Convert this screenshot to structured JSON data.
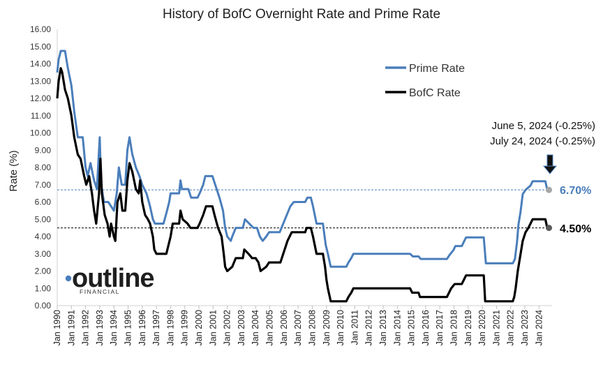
{
  "chart_data": {
    "type": "line",
    "title": "History of BofC Overnight Rate and Prime Rate",
    "xlabel": "",
    "ylabel": "Rate (%)",
    "ylim": [
      0,
      16
    ],
    "xlim": [
      1990.0,
      2024.92
    ],
    "y_ticks": [
      "0.00",
      "1.00",
      "2.00",
      "3.00",
      "4.00",
      "5.00",
      "6.00",
      "7.00",
      "8.00",
      "9.00",
      "10.00",
      "11.00",
      "12.00",
      "13.00",
      "14.00",
      "15.00",
      "16.00"
    ],
    "x_tick_labels": [
      "Jan 1990",
      "Jan 1991",
      "Jan 1992",
      "Jan 1993",
      "Jan 1994",
      "Jan 1995",
      "Jan 1996",
      "Jan 1997",
      "Jan 1998",
      "Jan 1999",
      "Jan 2000",
      "Jan 2001",
      "Jan 2002",
      "Jan 2003",
      "Jan 2004",
      "Jan 2005",
      "Jan 2006",
      "Jan 2007",
      "Jan 2008",
      "Jan 2009",
      "Jan 2010",
      "Jan 2011",
      "Jan 2012",
      "Jan 2013",
      "Jan 2014",
      "Jan 2015",
      "Jan 2016",
      "Jan 2017",
      "Jan 2018",
      "Jan 2019",
      "Jan 2020",
      "Jan 2021",
      "Jan 2022",
      "Jan 2023",
      "Jan 2024"
    ],
    "grid": false,
    "legend_position": "top-right",
    "series": [
      {
        "name": "Prime Rate",
        "color": "#4a7ebb",
        "points": [
          [
            1990.0,
            13.5
          ],
          [
            1990.1,
            14.25
          ],
          [
            1990.25,
            14.75
          ],
          [
            1990.55,
            14.75
          ],
          [
            1990.75,
            13.75
          ],
          [
            1991.0,
            12.75
          ],
          [
            1991.2,
            11.25
          ],
          [
            1991.45,
            9.75
          ],
          [
            1991.8,
            9.75
          ],
          [
            1992.0,
            8.0
          ],
          [
            1992.15,
            7.5
          ],
          [
            1992.35,
            8.25
          ],
          [
            1992.6,
            7.25
          ],
          [
            1992.8,
            6.75
          ],
          [
            1993.0,
            9.75
          ],
          [
            1993.1,
            7.0
          ],
          [
            1993.3,
            6.0
          ],
          [
            1993.6,
            6.0
          ],
          [
            1993.8,
            5.75
          ],
          [
            1994.0,
            5.5
          ],
          [
            1994.2,
            6.5
          ],
          [
            1994.35,
            8.0
          ],
          [
            1994.55,
            7.0
          ],
          [
            1994.8,
            7.0
          ],
          [
            1994.95,
            9.0
          ],
          [
            1995.1,
            9.75
          ],
          [
            1995.3,
            8.75
          ],
          [
            1995.55,
            8.0
          ],
          [
            1995.8,
            7.5
          ],
          [
            1996.0,
            7.0
          ],
          [
            1996.3,
            6.5
          ],
          [
            1996.55,
            5.75
          ],
          [
            1996.75,
            5.0
          ],
          [
            1996.9,
            4.75
          ],
          [
            1997.5,
            4.75
          ],
          [
            1997.75,
            5.5
          ],
          [
            1997.9,
            6.0
          ],
          [
            1998.0,
            6.5
          ],
          [
            1998.6,
            6.5
          ],
          [
            1998.7,
            7.25
          ],
          [
            1998.8,
            6.75
          ],
          [
            1999.25,
            6.75
          ],
          [
            1999.45,
            6.25
          ],
          [
            1999.9,
            6.25
          ],
          [
            2000.05,
            6.5
          ],
          [
            2000.3,
            7.0
          ],
          [
            2000.45,
            7.5
          ],
          [
            2000.95,
            7.5
          ],
          [
            2001.15,
            7.0
          ],
          [
            2001.45,
            6.25
          ],
          [
            2001.7,
            5.5
          ],
          [
            2001.85,
            4.5
          ],
          [
            2002.0,
            4.0
          ],
          [
            2002.25,
            3.75
          ],
          [
            2002.35,
            4.0
          ],
          [
            2002.6,
            4.5
          ],
          [
            2003.1,
            4.5
          ],
          [
            2003.25,
            5.0
          ],
          [
            2003.55,
            4.75
          ],
          [
            2003.85,
            4.5
          ],
          [
            2004.1,
            4.5
          ],
          [
            2004.3,
            4.0
          ],
          [
            2004.5,
            3.75
          ],
          [
            2004.75,
            4.0
          ],
          [
            2004.95,
            4.25
          ],
          [
            2005.7,
            4.25
          ],
          [
            2005.95,
            4.75
          ],
          [
            2006.2,
            5.25
          ],
          [
            2006.45,
            5.75
          ],
          [
            2006.7,
            6.0
          ],
          [
            2007.5,
            6.0
          ],
          [
            2007.65,
            6.25
          ],
          [
            2007.9,
            6.25
          ],
          [
            2008.05,
            5.75
          ],
          [
            2008.3,
            4.75
          ],
          [
            2008.75,
            4.75
          ],
          [
            2008.95,
            3.5
          ],
          [
            2009.1,
            3.0
          ],
          [
            2009.3,
            2.25
          ],
          [
            2010.4,
            2.25
          ],
          [
            2010.55,
            2.5
          ],
          [
            2010.75,
            2.75
          ],
          [
            2010.9,
            3.0
          ],
          [
            2014.9,
            3.0
          ],
          [
            2015.1,
            2.85
          ],
          [
            2015.5,
            2.85
          ],
          [
            2015.65,
            2.7
          ],
          [
            2017.5,
            2.7
          ],
          [
            2017.7,
            2.95
          ],
          [
            2017.95,
            3.2
          ],
          [
            2018.1,
            3.45
          ],
          [
            2018.55,
            3.45
          ],
          [
            2018.7,
            3.7
          ],
          [
            2018.85,
            3.95
          ],
          [
            2020.1,
            3.95
          ],
          [
            2020.25,
            2.45
          ],
          [
            2022.15,
            2.45
          ],
          [
            2022.3,
            2.7
          ],
          [
            2022.45,
            3.7
          ],
          [
            2022.55,
            4.7
          ],
          [
            2022.7,
            5.45
          ],
          [
            2022.85,
            6.45
          ],
          [
            2023.05,
            6.7
          ],
          [
            2023.4,
            6.95
          ],
          [
            2023.55,
            7.2
          ],
          [
            2024.45,
            7.2
          ],
          [
            2024.58,
            6.7
          ],
          [
            2024.7,
            6.7
          ]
        ]
      },
      {
        "name": "BofC Rate",
        "color": "#000000",
        "points": [
          [
            1990.0,
            12.0
          ],
          [
            1990.1,
            13.0
          ],
          [
            1990.25,
            13.75
          ],
          [
            1990.35,
            13.5
          ],
          [
            1990.55,
            12.5
          ],
          [
            1990.75,
            12.0
          ],
          [
            1991.0,
            11.0
          ],
          [
            1991.2,
            9.75
          ],
          [
            1991.45,
            8.75
          ],
          [
            1991.65,
            8.5
          ],
          [
            1991.9,
            7.5
          ],
          [
            1992.05,
            7.0
          ],
          [
            1992.25,
            7.5
          ],
          [
            1992.45,
            6.5
          ],
          [
            1992.6,
            5.5
          ],
          [
            1992.75,
            4.75
          ],
          [
            1992.95,
            6.5
          ],
          [
            1993.05,
            8.5
          ],
          [
            1993.15,
            6.5
          ],
          [
            1993.35,
            5.25
          ],
          [
            1993.55,
            4.75
          ],
          [
            1993.7,
            4.0
          ],
          [
            1993.8,
            4.75
          ],
          [
            1994.0,
            4.0
          ],
          [
            1994.1,
            3.75
          ],
          [
            1994.25,
            6.0
          ],
          [
            1994.45,
            6.5
          ],
          [
            1994.6,
            5.5
          ],
          [
            1994.8,
            5.5
          ],
          [
            1994.95,
            7.25
          ],
          [
            1995.1,
            8.25
          ],
          [
            1995.3,
            7.75
          ],
          [
            1995.55,
            6.75
          ],
          [
            1995.75,
            6.5
          ],
          [
            1995.85,
            7.25
          ],
          [
            1996.0,
            6.0
          ],
          [
            1996.2,
            5.25
          ],
          [
            1996.4,
            5.0
          ],
          [
            1996.55,
            4.75
          ],
          [
            1996.75,
            4.0
          ],
          [
            1996.85,
            3.25
          ],
          [
            1997.0,
            3.0
          ],
          [
            1997.7,
            3.0
          ],
          [
            1997.85,
            3.5
          ],
          [
            1998.0,
            4.0
          ],
          [
            1998.15,
            4.75
          ],
          [
            1998.6,
            4.75
          ],
          [
            1998.7,
            5.5
          ],
          [
            1998.85,
            5.0
          ],
          [
            1999.2,
            4.75
          ],
          [
            1999.4,
            4.5
          ],
          [
            1999.9,
            4.5
          ],
          [
            2000.05,
            4.75
          ],
          [
            2000.3,
            5.25
          ],
          [
            2000.5,
            5.75
          ],
          [
            2000.95,
            5.75
          ],
          [
            2001.1,
            5.25
          ],
          [
            2001.35,
            4.5
          ],
          [
            2001.6,
            4.0
          ],
          [
            2001.75,
            3.0
          ],
          [
            2001.85,
            2.25
          ],
          [
            2002.0,
            2.0
          ],
          [
            2002.35,
            2.25
          ],
          [
            2002.6,
            2.75
          ],
          [
            2003.1,
            2.75
          ],
          [
            2003.2,
            3.25
          ],
          [
            2003.5,
            3.0
          ],
          [
            2003.75,
            2.75
          ],
          [
            2004.0,
            2.75
          ],
          [
            2004.2,
            2.5
          ],
          [
            2004.35,
            2.0
          ],
          [
            2004.75,
            2.25
          ],
          [
            2004.95,
            2.5
          ],
          [
            2005.75,
            2.5
          ],
          [
            2005.95,
            3.0
          ],
          [
            2006.25,
            3.75
          ],
          [
            2006.55,
            4.25
          ],
          [
            2007.5,
            4.25
          ],
          [
            2007.6,
            4.5
          ],
          [
            2007.9,
            4.5
          ],
          [
            2008.05,
            4.0
          ],
          [
            2008.3,
            3.0
          ],
          [
            2008.75,
            3.0
          ],
          [
            2008.9,
            2.25
          ],
          [
            2009.0,
            1.5
          ],
          [
            2009.1,
            1.0
          ],
          [
            2009.3,
            0.25
          ],
          [
            2010.4,
            0.25
          ],
          [
            2010.55,
            0.5
          ],
          [
            2010.75,
            0.75
          ],
          [
            2010.9,
            1.0
          ],
          [
            2014.9,
            1.0
          ],
          [
            2015.05,
            0.75
          ],
          [
            2015.5,
            0.75
          ],
          [
            2015.6,
            0.5
          ],
          [
            2017.5,
            0.5
          ],
          [
            2017.65,
            0.75
          ],
          [
            2017.8,
            1.0
          ],
          [
            2018.05,
            1.25
          ],
          [
            2018.55,
            1.25
          ],
          [
            2018.7,
            1.5
          ],
          [
            2018.85,
            1.75
          ],
          [
            2020.1,
            1.75
          ],
          [
            2020.2,
            0.25
          ],
          [
            2022.15,
            0.25
          ],
          [
            2022.25,
            0.5
          ],
          [
            2022.35,
            1.0
          ],
          [
            2022.5,
            2.0
          ],
          [
            2022.6,
            2.5
          ],
          [
            2022.75,
            3.25
          ],
          [
            2022.85,
            3.75
          ],
          [
            2023.05,
            4.25
          ],
          [
            2023.25,
            4.5
          ],
          [
            2023.55,
            5.0
          ],
          [
            2024.45,
            5.0
          ],
          [
            2024.58,
            4.5
          ],
          [
            2024.7,
            4.5
          ]
        ]
      }
    ],
    "reference_lines": [
      {
        "value": 6.7,
        "color": "#4a7ebb",
        "style": "dashed"
      },
      {
        "value": 4.5,
        "color": "#000000",
        "style": "dashed"
      }
    ],
    "end_labels": [
      {
        "text": "6.70%",
        "value": 6.7,
        "color": "#4a7ebb"
      },
      {
        "text": "4.50%",
        "value": 4.5,
        "color": "#000000"
      }
    ],
    "annotations": [
      "June 5, 2024 (-0.25%)",
      "July 24, 2024 (-0.25%)"
    ]
  },
  "logo": {
    "word": "outline",
    "sub": "FINANCIAL"
  }
}
